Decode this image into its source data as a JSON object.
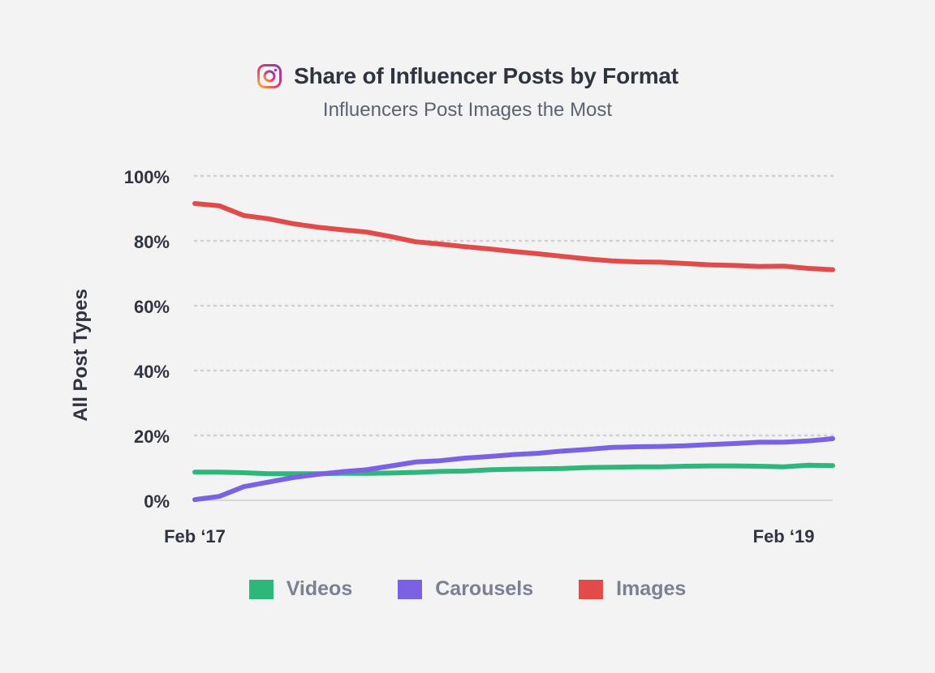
{
  "header": {
    "title": "Share of Influencer Posts by Format",
    "subtitle": "Influencers Post Images the Most",
    "icon": "instagram-icon"
  },
  "chart_data": {
    "type": "line",
    "title": "Share of Influencer Posts by Format",
    "subtitle": "Influencers Post Images the Most",
    "xlabel": "",
    "ylabel": "All Post Types",
    "ylim": [
      0,
      100
    ],
    "yticks": [
      0,
      20,
      40,
      60,
      80,
      100
    ],
    "ytick_labels": [
      "0%",
      "20%",
      "40%",
      "60%",
      "80%",
      "100%"
    ],
    "xtick_labels": [
      "Feb ‘17",
      "Feb ‘19"
    ],
    "xtick_positions": [
      0,
      24
    ],
    "x": [
      0,
      1,
      2,
      3,
      4,
      5,
      6,
      7,
      8,
      9,
      10,
      11,
      12,
      13,
      14,
      15,
      16,
      17,
      18,
      19,
      20,
      21,
      22,
      23,
      24,
      25,
      26
    ],
    "grid": true,
    "legend_position": "bottom",
    "series": [
      {
        "name": "Videos",
        "color": "#2db77b",
        "values": [
          8.7,
          8.7,
          8.5,
          8.2,
          8.2,
          8.2,
          8.3,
          8.3,
          8.4,
          8.6,
          8.9,
          9.0,
          9.4,
          9.6,
          9.7,
          9.8,
          10.1,
          10.2,
          10.3,
          10.3,
          10.5,
          10.6,
          10.6,
          10.5,
          10.3,
          10.8,
          10.7
        ]
      },
      {
        "name": "Carousels",
        "color": "#7b62e5",
        "values": [
          0.2,
          1.2,
          4.2,
          5.6,
          7.0,
          8.0,
          8.8,
          9.4,
          10.6,
          11.8,
          12.2,
          13.0,
          13.5,
          14.1,
          14.5,
          15.2,
          15.7,
          16.3,
          16.5,
          16.6,
          16.8,
          17.2,
          17.5,
          17.9,
          17.9,
          18.3,
          19.0
        ]
      },
      {
        "name": "Images",
        "color": "#e34a4a",
        "values": [
          91.5,
          90.8,
          87.8,
          86.8,
          85.3,
          84.2,
          83.4,
          82.7,
          81.3,
          79.7,
          79.0,
          78.2,
          77.5,
          76.7,
          76.0,
          75.2,
          74.4,
          73.8,
          73.5,
          73.4,
          73.0,
          72.6,
          72.4,
          72.1,
          72.2,
          71.5,
          71.1
        ]
      }
    ]
  }
}
